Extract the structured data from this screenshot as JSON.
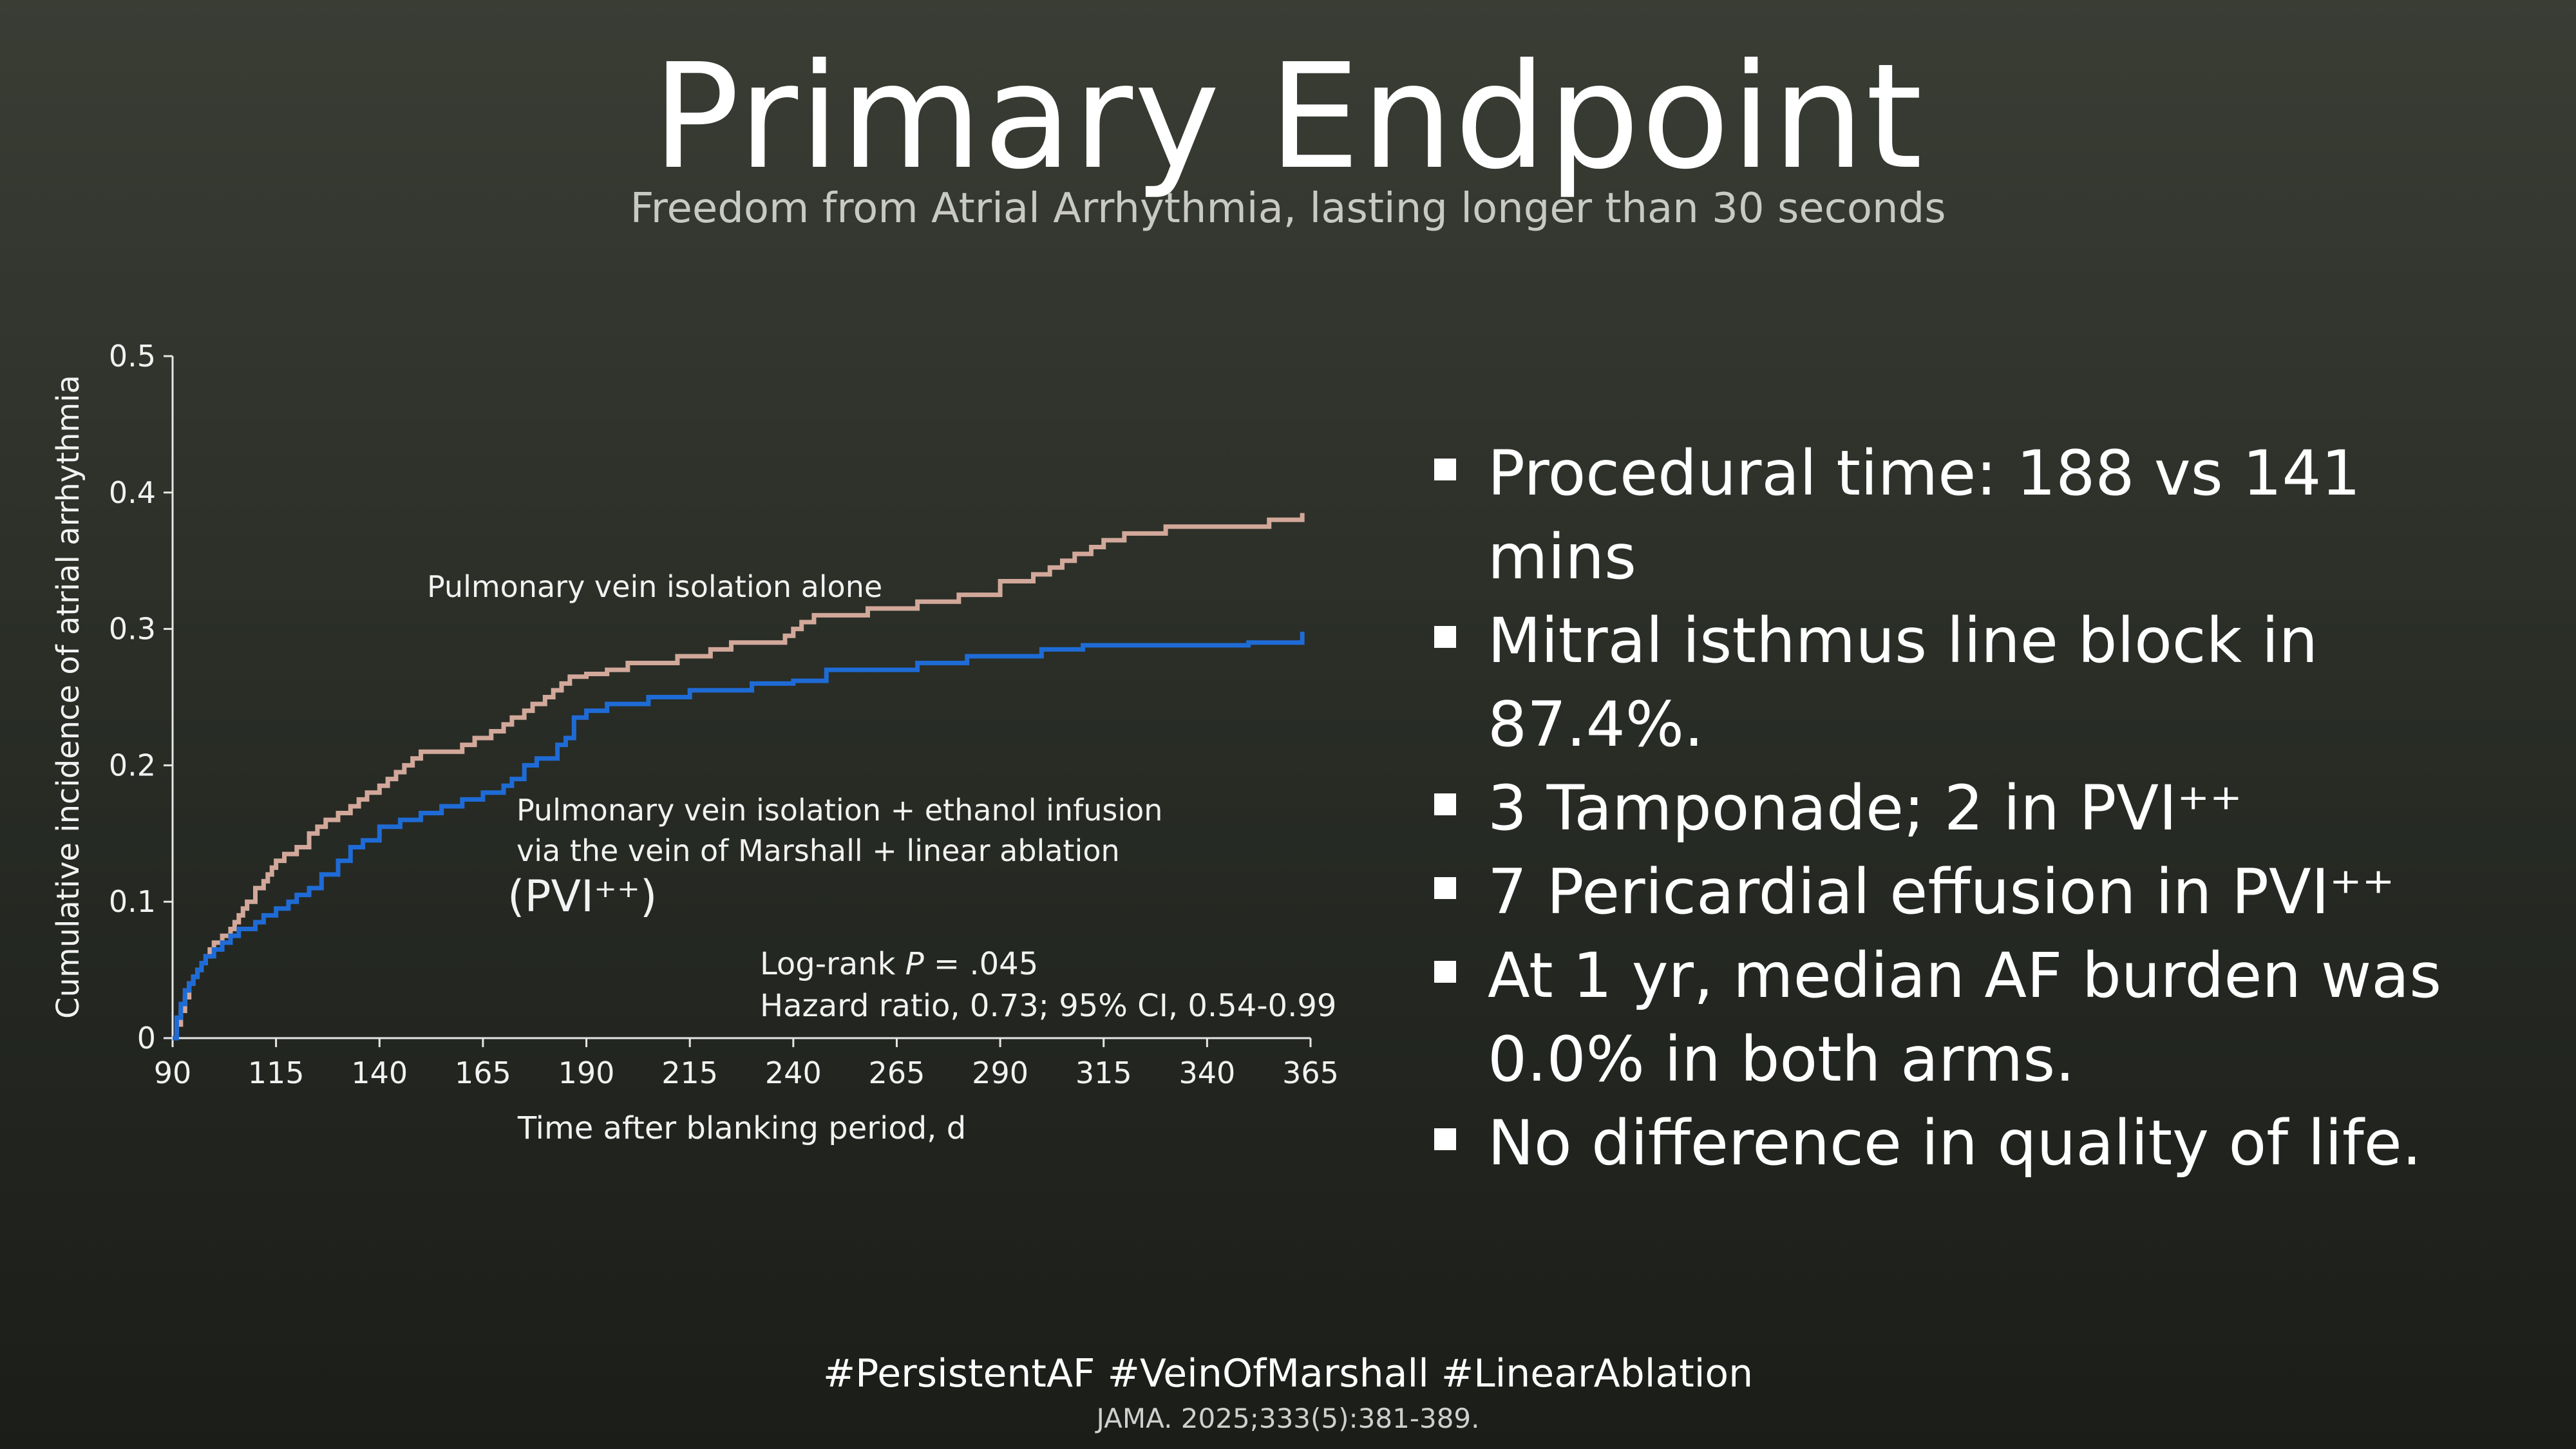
{
  "header": {
    "title": "Primary Endpoint",
    "subtitle": "Freedom from Atrial Arrhythmia, lasting longer than 30 seconds"
  },
  "bullets": [
    {
      "text": "Procedural time: 188 vs 141 mins"
    },
    {
      "text": "Mitral isthmus line block in 87.4%."
    },
    {
      "text": "3 Tamponade; 2 in PVI⁺⁺"
    },
    {
      "text": "7 Pericardial effusion in PVI⁺⁺"
    },
    {
      "text": "At 1 yr, median AF burden was 0.0% in both arms."
    },
    {
      "text": "No difference in quality of life."
    }
  ],
  "footer": {
    "hashtags": "#PersistentAF #VeinOfMarshall #LinearAblation",
    "citation": "JAMA. 2025;333(5):381-389."
  },
  "colors": {
    "pvi_alone": "#d2a89a",
    "pvi_plus": "#1f6bd6",
    "axis": "#e6e6e6"
  },
  "chart_data": {
    "type": "line",
    "step": true,
    "title": "",
    "xlabel": "Time after blanking period, d",
    "ylabel": "Cumulative incidence of atrial arrhythmia",
    "xlim": [
      90,
      365
    ],
    "ylim": [
      0,
      0.5
    ],
    "xticks": [
      90,
      115,
      140,
      165,
      190,
      215,
      240,
      265,
      290,
      315,
      340,
      365
    ],
    "yticks": [
      0,
      0.1,
      0.2,
      0.3,
      0.4,
      0.5
    ],
    "ytick_labels": [
      "0",
      "0.1",
      "0.2",
      "0.3",
      "0.4",
      "0.5"
    ],
    "series": [
      {
        "name": "Pulmonary vein isolation alone",
        "color": "#d2a89a",
        "x": [
          90,
          91,
          92,
          93,
          94,
          95,
          96,
          97,
          98,
          99,
          100,
          102,
          104,
          105,
          106,
          107,
          108,
          110,
          112,
          113,
          114,
          115,
          117,
          120,
          123,
          125,
          127,
          130,
          133,
          135,
          137,
          140,
          142,
          144,
          146,
          148,
          150,
          152,
          155,
          158,
          160,
          163,
          167,
          170,
          172,
          175,
          177,
          180,
          182,
          184,
          186,
          190,
          195,
          200,
          205,
          212,
          220,
          225,
          230,
          238,
          240,
          242,
          245,
          250,
          258,
          270,
          280,
          290,
          298,
          302,
          305,
          308,
          312,
          315,
          320,
          325,
          330,
          345,
          355,
          362,
          363
        ],
        "y": [
          0,
          0.01,
          0.02,
          0.03,
          0.04,
          0.045,
          0.05,
          0.055,
          0.06,
          0.065,
          0.07,
          0.075,
          0.08,
          0.085,
          0.09,
          0.095,
          0.1,
          0.11,
          0.115,
          0.12,
          0.125,
          0.13,
          0.135,
          0.14,
          0.15,
          0.155,
          0.16,
          0.165,
          0.17,
          0.175,
          0.18,
          0.185,
          0.19,
          0.195,
          0.2,
          0.205,
          0.21,
          0.21,
          0.21,
          0.21,
          0.215,
          0.22,
          0.225,
          0.23,
          0.235,
          0.24,
          0.245,
          0.25,
          0.255,
          0.26,
          0.265,
          0.267,
          0.27,
          0.275,
          0.275,
          0.28,
          0.285,
          0.29,
          0.29,
          0.295,
          0.3,
          0.305,
          0.31,
          0.31,
          0.315,
          0.32,
          0.325,
          0.335,
          0.34,
          0.345,
          0.35,
          0.355,
          0.36,
          0.365,
          0.37,
          0.37,
          0.375,
          0.375,
          0.38,
          0.38,
          0.385
        ]
      },
      {
        "name": "Pulmonary vein isolation + ethanol infusion via the vein of Marshall + linear ablation",
        "color": "#1f6bd6",
        "x": [
          90,
          91,
          92,
          93,
          94,
          95,
          96,
          97,
          98,
          100,
          102,
          104,
          106,
          110,
          112,
          115,
          118,
          120,
          123,
          126,
          130,
          133,
          136,
          140,
          145,
          150,
          155,
          160,
          165,
          170,
          172,
          175,
          178,
          183,
          185,
          187,
          190,
          195,
          205,
          215,
          230,
          240,
          248,
          270,
          282,
          287,
          300,
          310,
          330,
          350,
          360,
          363
        ],
        "y": [
          0,
          0.015,
          0.025,
          0.035,
          0.04,
          0.045,
          0.05,
          0.055,
          0.06,
          0.065,
          0.07,
          0.075,
          0.08,
          0.085,
          0.09,
          0.095,
          0.1,
          0.105,
          0.11,
          0.12,
          0.13,
          0.14,
          0.145,
          0.155,
          0.16,
          0.165,
          0.17,
          0.175,
          0.18,
          0.185,
          0.19,
          0.2,
          0.205,
          0.215,
          0.22,
          0.235,
          0.24,
          0.245,
          0.25,
          0.255,
          0.26,
          0.262,
          0.27,
          0.275,
          0.28,
          0.28,
          0.285,
          0.288,
          0.288,
          0.29,
          0.29,
          0.298
        ]
      }
    ],
    "annotations": {
      "pvi_alone_label": "Pulmonary vein isolation alone",
      "pvi_plus_label_line1": "Pulmonary vein isolation + ethanol infusion",
      "pvi_plus_label_line2": "via the vein of Marshall + linear ablation",
      "pvi_plus_abbrev": "(PVI⁺⁺)",
      "logrank_prefix": "Log-rank ",
      "logrank_p": "P",
      "logrank_value": " = .045",
      "hazard_ratio": "Hazard ratio, 0.73; 95% CI, 0.54-0.99"
    }
  }
}
